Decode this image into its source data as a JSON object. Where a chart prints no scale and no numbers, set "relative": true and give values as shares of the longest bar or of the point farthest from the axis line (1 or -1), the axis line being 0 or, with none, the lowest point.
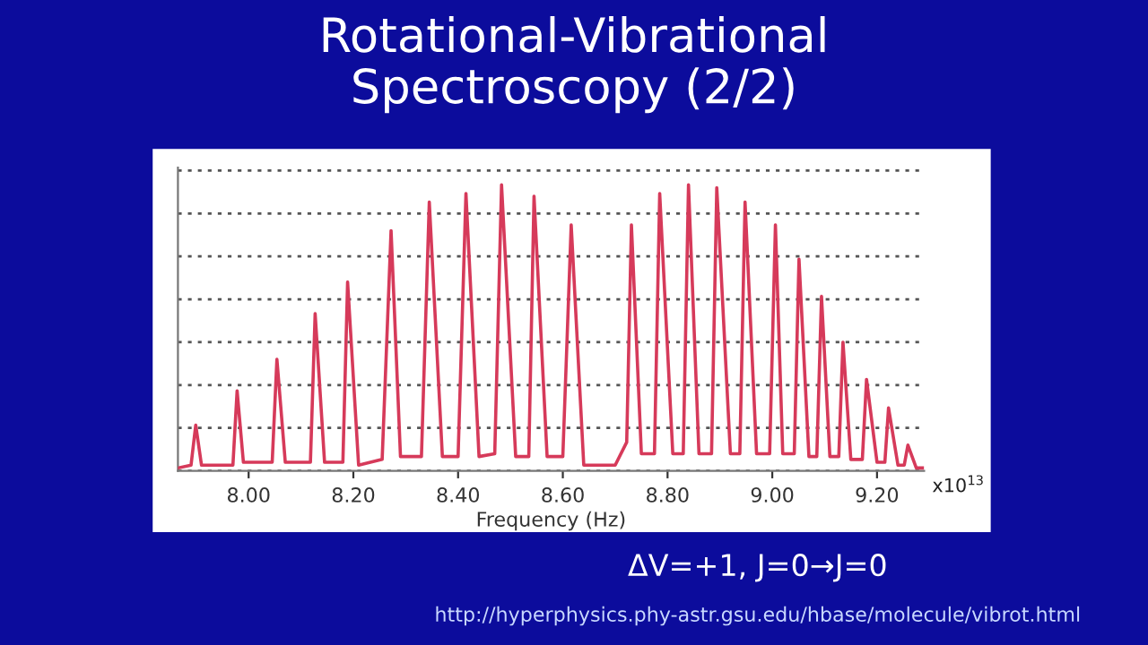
{
  "chart_data": {
    "type": "line",
    "title": "Rotational-Vibrational\nSpectroscopy (2/2)",
    "xlabel": "Frequency (Hz)",
    "relative": true,
    "color": "#d63a5a",
    "grid": "y",
    "legend": false,
    "marker": "none",
    "line_style": "solid",
    "xlim": [
      7.865,
      9.29
    ],
    "xticks": [
      {
        "value": 8.0,
        "label": "8.00"
      },
      {
        "value": 8.2,
        "label": "8.20"
      },
      {
        "value": 8.4,
        "label": "8.40"
      },
      {
        "value": 8.6,
        "label": "8.60"
      },
      {
        "value": 8.8,
        "label": "8.80"
      },
      {
        "value": 9.0,
        "label": "9.00"
      },
      {
        "value": 9.2,
        "label": "9.20"
      }
    ],
    "x": [
      7.865,
      7.89,
      7.899,
      7.91,
      7.97,
      7.978,
      7.99,
      8.045,
      8.054,
      8.07,
      8.118,
      8.127,
      8.145,
      8.18,
      8.189,
      8.21,
      8.255,
      8.272,
      8.29,
      8.33,
      8.345,
      8.37,
      8.4,
      8.415,
      8.44,
      8.47,
      8.483,
      8.51,
      8.535,
      8.545,
      8.57,
      8.6,
      8.616,
      8.64,
      8.7,
      8.722,
      8.731,
      8.75,
      8.775,
      8.785,
      8.81,
      8.83,
      8.84,
      8.86,
      8.884,
      8.894,
      8.92,
      8.938,
      8.948,
      8.97,
      8.995,
      9.006,
      9.02,
      9.042,
      9.051,
      9.07,
      9.085,
      9.094,
      9.11,
      9.127,
      9.135,
      9.15,
      9.172,
      9.18,
      9.2,
      9.215,
      9.222,
      9.24,
      9.252,
      9.259,
      9.275,
      9.287
    ],
    "values": [
      0.01,
      0.02,
      0.16,
      0.02,
      0.02,
      0.28,
      0.03,
      0.03,
      0.39,
      0.03,
      0.03,
      0.55,
      0.03,
      0.03,
      0.66,
      0.02,
      0.04,
      0.84,
      0.05,
      0.05,
      0.94,
      0.05,
      0.05,
      0.97,
      0.05,
      0.06,
      1.0,
      0.05,
      0.05,
      0.96,
      0.05,
      0.05,
      0.86,
      0.02,
      0.02,
      0.1,
      0.86,
      0.06,
      0.06,
      0.97,
      0.06,
      0.06,
      1.0,
      0.06,
      0.06,
      0.99,
      0.06,
      0.06,
      0.94,
      0.06,
      0.06,
      0.86,
      0.06,
      0.06,
      0.74,
      0.05,
      0.05,
      0.61,
      0.05,
      0.05,
      0.45,
      0.04,
      0.04,
      0.32,
      0.03,
      0.03,
      0.22,
      0.02,
      0.02,
      0.09,
      0.01,
      0.01
    ],
    "annotations": [
      "x10$^{13}$",
      "ΔV=+1, J=0→J=0",
      "http://hyperphysics.phy-astr.gsu.edu/hbase/molecule/vibrot.html"
    ]
  }
}
